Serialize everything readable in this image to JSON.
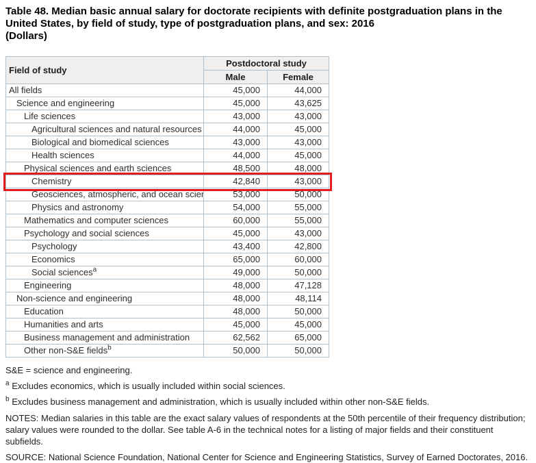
{
  "title": "Table 48. Median basic annual salary for doctorate recipients with definite postgraduation plans in the United States, by field of study, type of postgraduation plans, and sex: 2016",
  "unit_label": "(Dollars)",
  "table": {
    "row_header": "Field of study",
    "col_group_header": "Postdoctoral study",
    "columns": [
      "Male",
      "Female"
    ],
    "highlight_color": "#e21b1b",
    "header_bg_color": "#efefef",
    "border_color": "#afc0cf",
    "rows": [
      {
        "field": "All fields",
        "indent": 0,
        "male": "45,000",
        "female": "44,000"
      },
      {
        "field": "Science and engineering",
        "indent": 1,
        "male": "45,000",
        "female": "43,625"
      },
      {
        "field": "Life sciences",
        "indent": 2,
        "male": "43,000",
        "female": "43,000"
      },
      {
        "field": "Agricultural sciences and natural resources",
        "indent": 3,
        "male": "44,000",
        "female": "45,000"
      },
      {
        "field": "Biological and biomedical sciences",
        "indent": 3,
        "male": "43,000",
        "female": "43,000"
      },
      {
        "field": "Health sciences",
        "indent": 3,
        "male": "44,000",
        "female": "45,000"
      },
      {
        "field": "Physical sciences and earth sciences",
        "indent": 2,
        "male": "48,500",
        "female": "48,000"
      },
      {
        "field": "Chemistry",
        "indent": 3,
        "male": "42,840",
        "female": "43,000",
        "highlighted": true
      },
      {
        "field": "Geosciences, atmospheric, and ocean sciences",
        "indent": 3,
        "male": "53,000",
        "female": "50,000"
      },
      {
        "field": "Physics and astronomy",
        "indent": 3,
        "male": "54,000",
        "female": "55,000"
      },
      {
        "field": "Mathematics and computer sciences",
        "indent": 2,
        "male": "60,000",
        "female": "55,000"
      },
      {
        "field": "Psychology and social sciences",
        "indent": 2,
        "male": "45,000",
        "female": "43,000"
      },
      {
        "field": "Psychology",
        "indent": 3,
        "male": "43,400",
        "female": "42,800"
      },
      {
        "field": "Economics",
        "indent": 3,
        "male": "65,000",
        "female": "60,000"
      },
      {
        "field": "Social sciences",
        "sup": "a",
        "indent": 3,
        "male": "49,000",
        "female": "50,000"
      },
      {
        "field": "Engineering",
        "indent": 2,
        "male": "48,000",
        "female": "47,128"
      },
      {
        "field": "Non-science and engineering",
        "indent": 1,
        "male": "48,000",
        "female": "48,114"
      },
      {
        "field": "Education",
        "indent": 2,
        "male": "48,000",
        "female": "50,000"
      },
      {
        "field": "Humanities and arts",
        "indent": 2,
        "male": "45,000",
        "female": "45,000"
      },
      {
        "field": "Business management and administration",
        "indent": 2,
        "male": "62,562",
        "female": "65,000"
      },
      {
        "field": "Other non-S&E fields",
        "sup": "b",
        "indent": 2,
        "male": "50,000",
        "female": "50,000"
      }
    ]
  },
  "footnotes": {
    "abbreviation": "S&E = science and engineering.",
    "a_marker": "a",
    "a_text": "Excludes economics, which is usually included within social sciences.",
    "b_marker": "b",
    "b_text": "Excludes business management and administration, which is usually included within other non-S&E fields.",
    "notes": "NOTES: Median salaries in this table are the exact salary values of respondents at the 50th percentile of their frequency distribution; salary values were rounded to the dollar. See table A-6 in the technical notes for a listing of major fields and their constituent subfields.",
    "source": "SOURCE: National Science Foundation, National Center for Science and Engineering Statistics, Survey of Earned Doctorates, 2016."
  }
}
